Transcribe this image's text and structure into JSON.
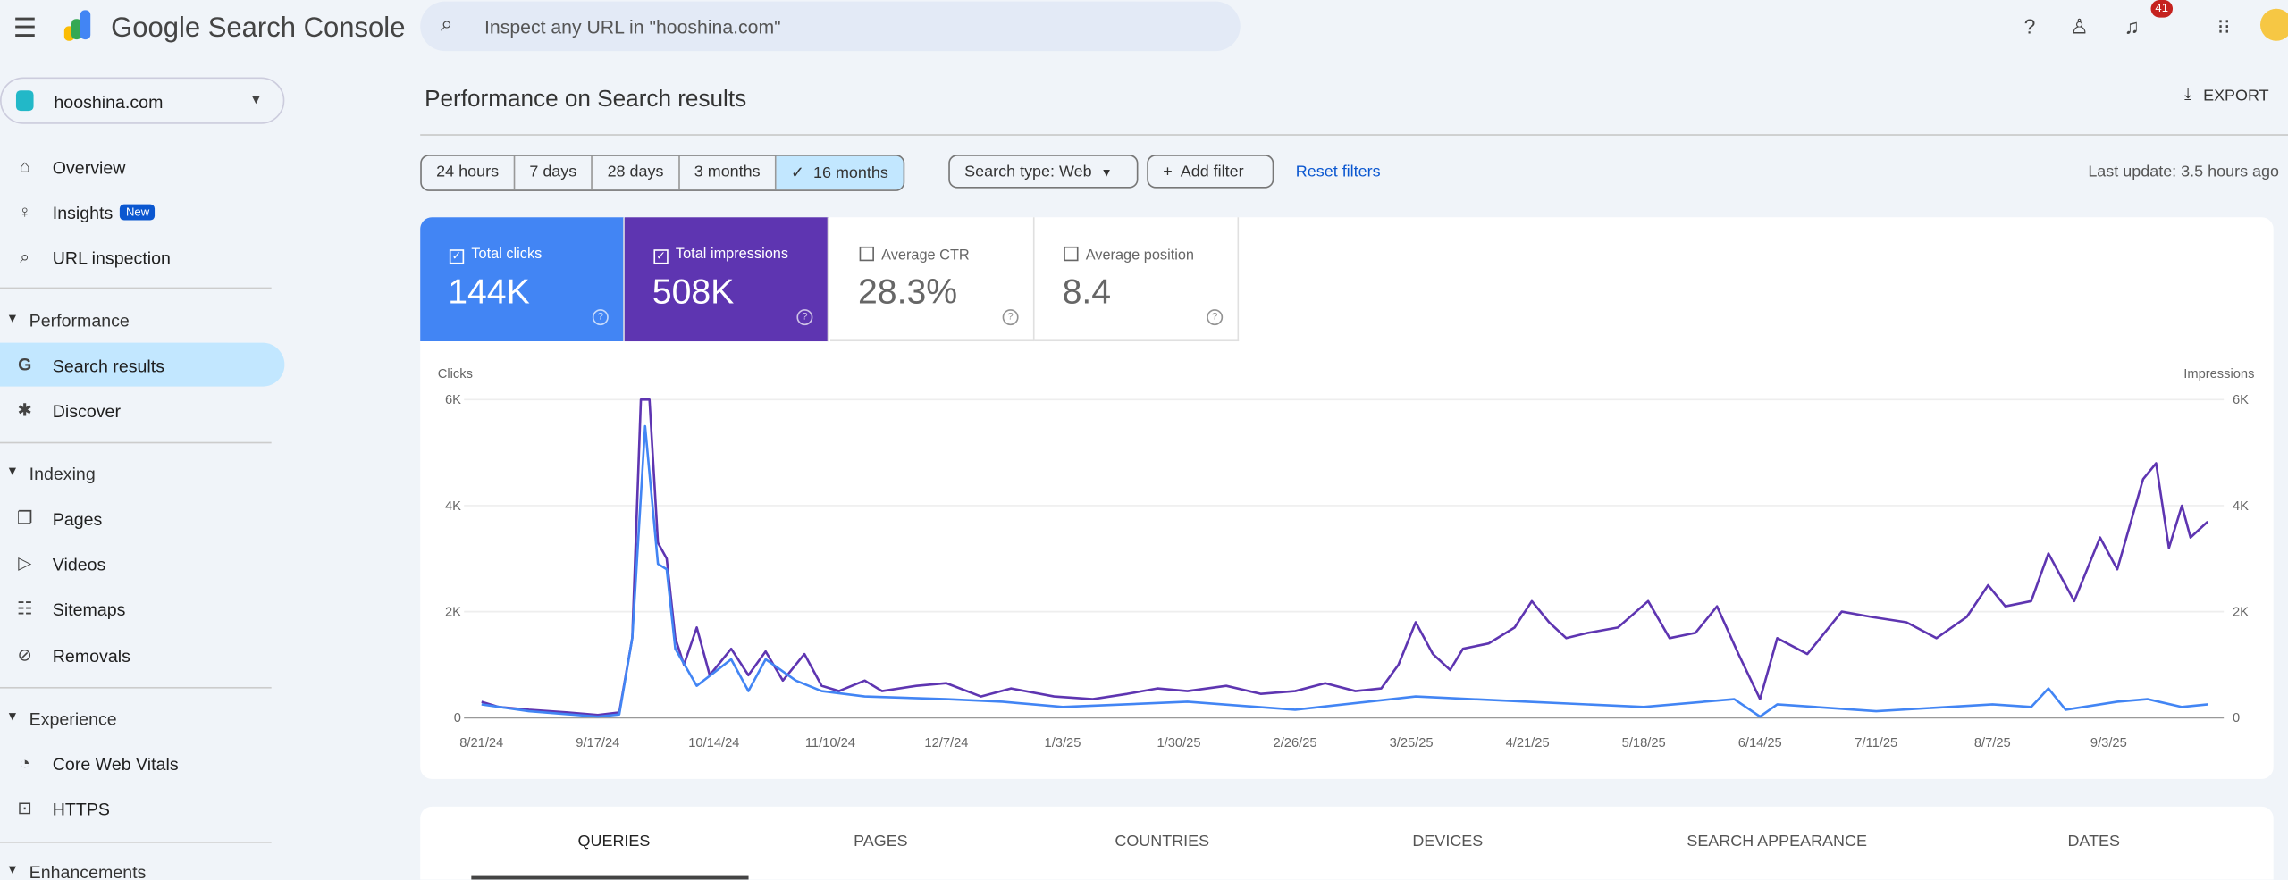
{
  "header": {
    "app_title": "Google Search Console",
    "search_placeholder": "Inspect any URL in \"hooshina.com\"",
    "notification_count": "41"
  },
  "sidebar": {
    "property": "hooshina.com",
    "items": [
      {
        "label": "Overview",
        "icon": "home-icon"
      },
      {
        "label": "Insights",
        "icon": "lightbulb-icon",
        "badge": "New"
      },
      {
        "label": "URL inspection",
        "icon": "search-icon"
      }
    ],
    "sections": [
      {
        "label": "Performance",
        "items": [
          {
            "label": "Search results",
            "icon": "google-g-icon",
            "active": true
          },
          {
            "label": "Discover",
            "icon": "asterisk-icon"
          }
        ]
      },
      {
        "label": "Indexing",
        "items": [
          {
            "label": "Pages",
            "icon": "pages-icon"
          },
          {
            "label": "Videos",
            "icon": "video-icon"
          },
          {
            "label": "Sitemaps",
            "icon": "sitemap-icon"
          },
          {
            "label": "Removals",
            "icon": "eye-off-icon"
          }
        ]
      },
      {
        "label": "Experience",
        "items": [
          {
            "label": "Core Web Vitals",
            "icon": "gauge-icon"
          },
          {
            "label": "HTTPS",
            "icon": "lock-icon"
          }
        ]
      },
      {
        "label": "Enhancements",
        "items": []
      }
    ]
  },
  "main": {
    "title": "Performance on Search results",
    "export_label": "EXPORT",
    "date_ranges": [
      "24 hours",
      "7 days",
      "28 days",
      "3 months",
      "16 months"
    ],
    "selected_range": "16 months",
    "search_type": "Search type: Web",
    "add_filter": "Add filter",
    "reset_filters": "Reset filters",
    "last_update": "Last update: 3.5 hours ago",
    "metrics": [
      {
        "label": "Total clicks",
        "value": "144K",
        "checked": true,
        "color": "#4285f4"
      },
      {
        "label": "Total impressions",
        "value": "508K",
        "checked": true,
        "color": "#5e35b1"
      },
      {
        "label": "Average CTR",
        "value": "28.3%",
        "checked": false
      },
      {
        "label": "Average position",
        "value": "8.4",
        "checked": false
      }
    ],
    "tabs": [
      "QUERIES",
      "PAGES",
      "COUNTRIES",
      "DEVICES",
      "SEARCH APPEARANCE",
      "DATES"
    ],
    "active_tab": "QUERIES"
  },
  "chart_data": {
    "type": "line",
    "ylabel_left": "Clicks",
    "ylabel_right": "Impressions",
    "ylim": [
      0,
      6000
    ],
    "yticks": [
      "0",
      "2K",
      "4K",
      "6K"
    ],
    "xticks": [
      "8/21/24",
      "9/17/24",
      "10/14/24",
      "11/10/24",
      "12/7/24",
      "1/3/25",
      "1/30/25",
      "2/26/25",
      "3/25/25",
      "4/21/25",
      "5/18/25",
      "6/14/25",
      "7/11/25",
      "8/7/25",
      "9/3/25"
    ],
    "grid": true,
    "series": [
      {
        "name": "Impressions",
        "color": "#5e35b1",
        "points": [
          [
            "2024-08-21",
            300
          ],
          [
            "2024-08-25",
            200
          ],
          [
            "2024-09-01",
            150
          ],
          [
            "2024-09-10",
            100
          ],
          [
            "2024-09-17",
            50
          ],
          [
            "2024-09-22",
            100
          ],
          [
            "2024-09-25",
            1500
          ],
          [
            "2024-09-27",
            6000
          ],
          [
            "2024-09-29",
            6000
          ],
          [
            "2024-10-01",
            3300
          ],
          [
            "2024-10-03",
            3000
          ],
          [
            "2024-10-05",
            1500
          ],
          [
            "2024-10-07",
            1000
          ],
          [
            "2024-10-10",
            1700
          ],
          [
            "2024-10-13",
            800
          ],
          [
            "2024-10-18",
            1300
          ],
          [
            "2024-10-22",
            800
          ],
          [
            "2024-10-26",
            1250
          ],
          [
            "2024-10-30",
            700
          ],
          [
            "2024-11-04",
            1200
          ],
          [
            "2024-11-08",
            600
          ],
          [
            "2024-11-12",
            500
          ],
          [
            "2024-11-18",
            700
          ],
          [
            "2024-11-22",
            500
          ],
          [
            "2024-11-30",
            600
          ],
          [
            "2024-12-07",
            650
          ],
          [
            "2024-12-15",
            400
          ],
          [
            "2024-12-22",
            550
          ],
          [
            "2025-01-01",
            400
          ],
          [
            "2025-01-10",
            350
          ],
          [
            "2025-01-18",
            450
          ],
          [
            "2025-01-25",
            550
          ],
          [
            "2025-02-01",
            500
          ],
          [
            "2025-02-10",
            600
          ],
          [
            "2025-02-18",
            450
          ],
          [
            "2025-02-26",
            500
          ],
          [
            "2025-03-05",
            650
          ],
          [
            "2025-03-12",
            500
          ],
          [
            "2025-03-18",
            550
          ],
          [
            "2025-03-22",
            1000
          ],
          [
            "2025-03-26",
            1800
          ],
          [
            "2025-03-30",
            1200
          ],
          [
            "2025-04-03",
            900
          ],
          [
            "2025-04-06",
            1300
          ],
          [
            "2025-04-12",
            1400
          ],
          [
            "2025-04-18",
            1700
          ],
          [
            "2025-04-22",
            2200
          ],
          [
            "2025-04-26",
            1800
          ],
          [
            "2025-04-30",
            1500
          ],
          [
            "2025-05-05",
            1600
          ],
          [
            "2025-05-12",
            1700
          ],
          [
            "2025-05-19",
            2200
          ],
          [
            "2025-05-24",
            1500
          ],
          [
            "2025-05-30",
            1600
          ],
          [
            "2025-06-04",
            2100
          ],
          [
            "2025-06-09",
            1200
          ],
          [
            "2025-06-14",
            350
          ],
          [
            "2025-06-18",
            1500
          ],
          [
            "2025-06-25",
            1200
          ],
          [
            "2025-07-03",
            2000
          ],
          [
            "2025-07-10",
            1900
          ],
          [
            "2025-07-18",
            1800
          ],
          [
            "2025-07-25",
            1500
          ],
          [
            "2025-08-01",
            1900
          ],
          [
            "2025-08-06",
            2500
          ],
          [
            "2025-08-10",
            2100
          ],
          [
            "2025-08-16",
            2200
          ],
          [
            "2025-08-20",
            3100
          ],
          [
            "2025-08-26",
            2200
          ],
          [
            "2025-09-01",
            3400
          ],
          [
            "2025-09-05",
            2800
          ],
          [
            "2025-09-11",
            4500
          ],
          [
            "2025-09-14",
            4800
          ],
          [
            "2025-09-17",
            3200
          ],
          [
            "2025-09-20",
            4000
          ],
          [
            "2025-09-22",
            3400
          ],
          [
            "2025-09-26",
            3700
          ]
        ]
      },
      {
        "name": "Clicks",
        "color": "#4285f4",
        "points": [
          [
            "2024-08-21",
            250
          ],
          [
            "2024-09-01",
            120
          ],
          [
            "2024-09-17",
            20
          ],
          [
            "2024-09-22",
            60
          ],
          [
            "2024-09-25",
            1500
          ],
          [
            "2024-09-28",
            5500
          ],
          [
            "2024-10-01",
            2900
          ],
          [
            "2024-10-03",
            2800
          ],
          [
            "2024-10-05",
            1300
          ],
          [
            "2024-10-10",
            600
          ],
          [
            "2024-10-18",
            1100
          ],
          [
            "2024-10-22",
            500
          ],
          [
            "2024-10-26",
            1100
          ],
          [
            "2024-11-02",
            700
          ],
          [
            "2024-11-08",
            500
          ],
          [
            "2024-11-18",
            400
          ],
          [
            "2024-12-07",
            350
          ],
          [
            "2024-12-20",
            300
          ],
          [
            "2025-01-03",
            200
          ],
          [
            "2025-02-01",
            300
          ],
          [
            "2025-02-26",
            150
          ],
          [
            "2025-03-26",
            400
          ],
          [
            "2025-04-21",
            300
          ],
          [
            "2025-05-18",
            200
          ],
          [
            "2025-06-08",
            350
          ],
          [
            "2025-06-14",
            20
          ],
          [
            "2025-06-18",
            250
          ],
          [
            "2025-07-11",
            120
          ],
          [
            "2025-08-07",
            250
          ],
          [
            "2025-08-16",
            200
          ],
          [
            "2025-08-20",
            550
          ],
          [
            "2025-08-24",
            150
          ],
          [
            "2025-09-05",
            300
          ],
          [
            "2025-09-12",
            350
          ],
          [
            "2025-09-20",
            200
          ],
          [
            "2025-09-26",
            250
          ]
        ]
      }
    ]
  }
}
